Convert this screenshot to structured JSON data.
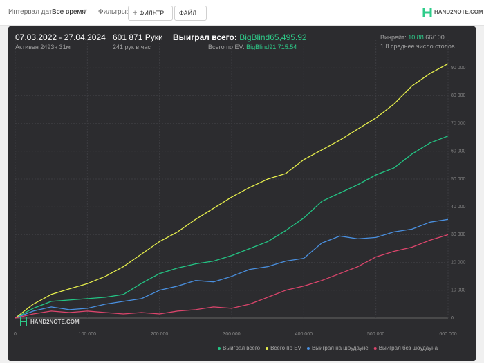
{
  "toolbar": {
    "date_label": "Интервал дат:",
    "date_value": "Все время",
    "filters_label": "Фильтры:",
    "filter_button": "ФИЛЬТР...",
    "file_button": "ФАЙЛ...",
    "logo": "HAND2NOTE.COM"
  },
  "stats": {
    "period": "07.03.2022 - 27.04.2024",
    "active": "Активен 2493ч 31м",
    "hands": "601 871 Руки",
    "hands_per_hour": "241 рук в час",
    "won_label": "Выиграл всего:",
    "won_value": "BigBlind65,495.92",
    "ev_label": "Всего по EV:",
    "ev_value": "BigBlind91,715.54",
    "winrate_label": "Винрейт:",
    "winrate_value": "10.88",
    "winrate_unit": "66/100",
    "tables": "1.8 среднее число столов"
  },
  "chart_data": {
    "type": "line",
    "watermark": "HAND2NOTE.COM",
    "x": [
      0,
      25000,
      50000,
      75000,
      100000,
      125000,
      150000,
      175000,
      200000,
      225000,
      250000,
      275000,
      300000,
      325000,
      350000,
      375000,
      400000,
      425000,
      450000,
      475000,
      500000,
      525000,
      550000,
      575000,
      600000
    ],
    "series": [
      {
        "name": "Выиграл всего",
        "color": "#23c484",
        "values": [
          0,
          3500,
          6000,
          6500,
          7000,
          7500,
          8500,
          12500,
          16000,
          18000,
          19500,
          20500,
          22500,
          25000,
          27500,
          31500,
          36000,
          42000,
          45000,
          48000,
          51500,
          54000,
          59000,
          63000,
          65500
        ]
      },
      {
        "name": "Всего по EV",
        "color": "#e6ee4c",
        "values": [
          0,
          5000,
          8500,
          10500,
          12400,
          15000,
          18500,
          23000,
          27500,
          31000,
          35500,
          39500,
          43500,
          47000,
          50000,
          52000,
          57000,
          60500,
          64000,
          68000,
          72000,
          77000,
          83500,
          88000,
          91500
        ]
      },
      {
        "name": "Выиграл на шоудауне",
        "color": "#4a90e0",
        "values": [
          0,
          2500,
          4000,
          3000,
          3500,
          5000,
          6000,
          7000,
          10000,
          11500,
          13500,
          13000,
          15000,
          17500,
          18500,
          20500,
          21500,
          27000,
          29500,
          28500,
          29000,
          31000,
          32000,
          34500,
          35500
        ]
      },
      {
        "name": "Выиграл без шоудауна",
        "color": "#dc456c",
        "values": [
          0,
          1500,
          2500,
          2000,
          2500,
          2000,
          1500,
          2000,
          1500,
          2500,
          3000,
          4000,
          3500,
          5000,
          7500,
          10000,
          11500,
          13500,
          16000,
          18500,
          22000,
          24000,
          25500,
          28000,
          30000
        ]
      }
    ],
    "xlim": [
      0,
      600000
    ],
    "ylim": [
      0,
      100000
    ],
    "xticks": [
      0,
      {
        "value": 100000,
        "label": "100 000"
      },
      {
        "value": 200000,
        "label": "200 000"
      },
      {
        "value": 300000,
        "label": "300 000"
      },
      {
        "value": 400000,
        "label": "400 000"
      },
      {
        "value": 500000,
        "label": "500 000"
      },
      {
        "value": 600000,
        "label": "600 000"
      }
    ],
    "yticks": [
      0,
      {
        "value": 10000,
        "label": "10 000"
      },
      {
        "value": 20000,
        "label": "20 000"
      },
      {
        "value": 30000,
        "label": "30 000"
      },
      {
        "value": 40000,
        "label": "40 000"
      },
      {
        "value": 50000,
        "label": "50 000"
      },
      {
        "value": 60000,
        "label": "60 000"
      },
      {
        "value": 70000,
        "label": "70 000"
      },
      {
        "value": 80000,
        "label": "80 000"
      },
      {
        "value": 90000,
        "label": "90 000"
      }
    ],
    "grid": true,
    "legend": "bottom-right"
  }
}
